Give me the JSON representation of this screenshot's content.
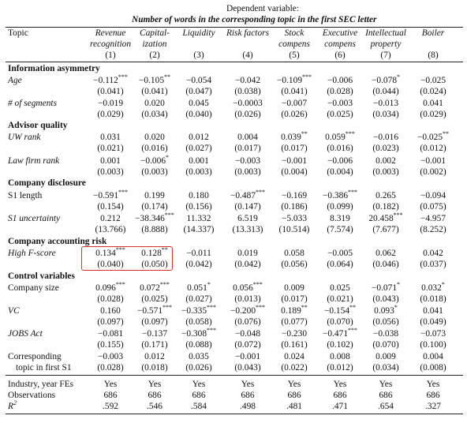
{
  "header": {
    "dep_var": "Dependent variable:",
    "title": "Number of words in the corresponding topic in the first SEC letter"
  },
  "columns": [
    {
      "l1": "Revenue",
      "l2": "recognition",
      "num": "(1)"
    },
    {
      "l1": "Capital-",
      "l2": "ization",
      "num": "(2)"
    },
    {
      "l1": "Liquidity",
      "l2": "",
      "num": "(3)"
    },
    {
      "l1": "Risk factors",
      "l2": "",
      "num": "(4)"
    },
    {
      "l1": "Stock",
      "l2": "compens",
      "num": "(5)"
    },
    {
      "l1": "Executive",
      "l2": "compens",
      "num": "(6)"
    },
    {
      "l1": "Intellectual",
      "l2": "property",
      "num": "(7)"
    },
    {
      "l1": "Boiler",
      "l2": "",
      "num": "(8)"
    }
  ],
  "topic_label": "Topic",
  "rows": [
    {
      "type": "section",
      "label": "Information asymmetry"
    },
    {
      "type": "coef",
      "label": "Age",
      "italic": true,
      "est": [
        "−0.112",
        "−0.105",
        "−0.054",
        "−0.042",
        "−0.109",
        "−0.006",
        "−0.078",
        "−0.025"
      ],
      "stars": [
        "***",
        "**",
        "",
        "",
        "***",
        "",
        "*",
        ""
      ],
      "se": [
        "(0.041)",
        "(0.041)",
        "(0.047)",
        "(0.038)",
        "(0.041)",
        "(0.028)",
        "(0.044)",
        "(0.024)"
      ]
    },
    {
      "type": "coef",
      "label": "# of segments",
      "italic": true,
      "est": [
        "−0.019",
        "0.020",
        "0.045",
        "−0.0003",
        "−0.007",
        "−0.003",
        "−0.013",
        "0.041"
      ],
      "stars": [
        "",
        "",
        "",
        "",
        "",
        "",
        "",
        ""
      ],
      "se": [
        "(0.029)",
        "(0.034)",
        "(0.040)",
        "(0.026)",
        "(0.026)",
        "(0.025)",
        "(0.034)",
        "(0.029)"
      ]
    },
    {
      "type": "section",
      "label": "Advisor quality"
    },
    {
      "type": "coef",
      "label": "UW rank",
      "italic": true,
      "est": [
        "0.031",
        "0.020",
        "0.012",
        "0.004",
        "0.039",
        "0.059",
        "−0.016",
        "−0.025"
      ],
      "stars": [
        "",
        "",
        "",
        "",
        "**",
        "***",
        "",
        "**"
      ],
      "se": [
        "(0.021)",
        "(0.016)",
        "(0.027)",
        "(0.017)",
        "(0.017)",
        "(0.016)",
        "(0.023)",
        "(0.012)"
      ]
    },
    {
      "type": "coef",
      "label": "Law firm rank",
      "italic": true,
      "est": [
        "0.001",
        "−0.006",
        "0.001",
        "−0.003",
        "−0.001",
        "−0.006",
        "0.002",
        "−0.001"
      ],
      "stars": [
        "",
        "*",
        "",
        "",
        "",
        "",
        "",
        ""
      ],
      "se": [
        "(0.003)",
        "(0.003)",
        "(0.003)",
        "(0.003)",
        "(0.004)",
        "(0.004)",
        "(0.003)",
        "(0.002)"
      ]
    },
    {
      "type": "section",
      "label": "Company disclosure"
    },
    {
      "type": "coef",
      "label": "S1 length",
      "italic": false,
      "est": [
        "−0.591",
        "0.199",
        "0.180",
        "−0.487",
        "−0.169",
        "−0.386",
        "0.265",
        "−0.094"
      ],
      "stars": [
        "***",
        "",
        "",
        "***",
        "",
        "***",
        "",
        ""
      ],
      "se": [
        "(0.154)",
        "(0.174)",
        "(0.156)",
        "(0.147)",
        "(0.186)",
        "(0.099)",
        "(0.182)",
        "(0.075)"
      ]
    },
    {
      "type": "coef",
      "label": "S1 uncertainty",
      "italic": true,
      "est": [
        "0.212",
        "−38.346",
        "11.332",
        "6.519",
        "−5.033",
        "8.319",
        "20.458",
        "−4.957"
      ],
      "stars": [
        "",
        "***",
        "",
        "",
        "",
        "",
        "***",
        ""
      ],
      "se": [
        "(13.766)",
        "(8.888)",
        "(14.337)",
        "(13.313)",
        "(10.514)",
        "(7.574)",
        "(7.677)",
        "(8.252)"
      ]
    },
    {
      "type": "section",
      "label": "Company accounting risk"
    },
    {
      "type": "coef",
      "label": "High F-score",
      "italic": true,
      "est": [
        "0.134",
        "0.128",
        "−0.011",
        "0.019",
        "0.058",
        "−0.005",
        "0.062",
        "0.042"
      ],
      "stars": [
        "***",
        "**",
        "",
        "",
        "",
        "",
        "",
        ""
      ],
      "se": [
        "(0.040)",
        "(0.050)",
        "(0.042)",
        "(0.042)",
        "(0.056)",
        "(0.064)",
        "(0.046)",
        "(0.037)"
      ]
    },
    {
      "type": "section",
      "label": "Control variables"
    },
    {
      "type": "coef",
      "label": "Company size",
      "italic": false,
      "est": [
        "0.096",
        "0.072",
        "0.051",
        "0.056",
        "0.009",
        "0.025",
        "−0.071",
        "0.032"
      ],
      "stars": [
        "***",
        "***",
        "*",
        "***",
        "",
        "",
        "*",
        "*"
      ],
      "se": [
        "(0.028)",
        "(0.025)",
        "(0.027)",
        "(0.013)",
        "(0.017)",
        "(0.021)",
        "(0.043)",
        "(0.018)"
      ]
    },
    {
      "type": "coef",
      "label": "VC",
      "italic": true,
      "est": [
        "0.160",
        "−0.571",
        "−0.335",
        "−0.200",
        "0.189",
        "−0.154",
        "0.093",
        "0.041"
      ],
      "stars": [
        "",
        "***",
        "***",
        "***",
        "**",
        "**",
        "*",
        ""
      ],
      "se": [
        "(0.097)",
        "(0.097)",
        "(0.058)",
        "(0.076)",
        "(0.077)",
        "(0.070)",
        "(0.056)",
        "(0.049)"
      ]
    },
    {
      "type": "coef",
      "label": "JOBS Act",
      "italic": true,
      "est": [
        "−0.081",
        "−0.137",
        "−0.308",
        "−0.048",
        "−0.230",
        "−0.471",
        "−0.038",
        "−0.073"
      ],
      "stars": [
        "",
        "",
        "***",
        "",
        "",
        "***",
        "",
        ""
      ],
      "se": [
        "(0.155)",
        "(0.171)",
        "(0.088)",
        "(0.072)",
        "(0.161)",
        "(0.102)",
        "(0.070)",
        "(0.100)"
      ]
    },
    {
      "type": "coef",
      "label": "Corresponding",
      "label2": "topic in first S1",
      "italic": false,
      "est": [
        "−0.003",
        "0.012",
        "0.035",
        "−0.001",
        "0.024",
        "0.008",
        "0.009",
        "0.004"
      ],
      "stars": [
        "",
        "",
        "",
        "",
        "",
        "",
        "",
        ""
      ],
      "se": [
        "(0.028)",
        "(0.018)",
        "(0.026)",
        "(0.043)",
        "(0.022)",
        "(0.012)",
        "(0.034)",
        "(0.008)"
      ]
    }
  ],
  "footer": [
    {
      "label": "Industry, year FEs",
      "values": [
        "Yes",
        "Yes",
        "Yes",
        "Yes",
        "Yes",
        "Yes",
        "Yes",
        "Yes"
      ]
    },
    {
      "label": "Observations",
      "values": [
        "686",
        "686",
        "686",
        "686",
        "686",
        "686",
        "686",
        "686"
      ]
    },
    {
      "label": "R",
      "sup": "2",
      "values": [
        ".592",
        ".546",
        ".584",
        ".498",
        ".481",
        ".471",
        ".654",
        ".327"
      ]
    }
  ]
}
